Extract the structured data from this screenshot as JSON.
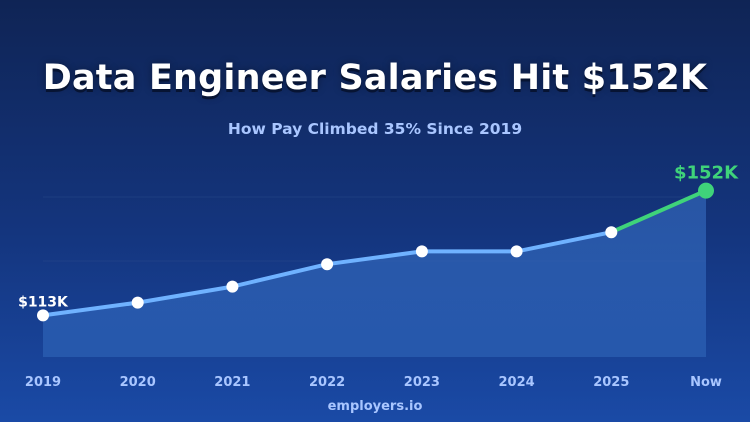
{
  "title": "Data Engineer Salaries Hit $152K",
  "subtitle": "How Pay Climbed 35% Since 2019",
  "footer": "employers.io",
  "colors": {
    "line": "#6fb2ff",
    "highlight": "#3fd37a",
    "point": "#ffffff",
    "area": "#2a5fb2",
    "grid": "#2a4a8c"
  },
  "chart_data": {
    "type": "line",
    "title": "Data Engineer Salaries Hit $152K",
    "subtitle": "How Pay Climbed 35% Since 2019",
    "xlabel": "",
    "ylabel": "",
    "categories": [
      "2019",
      "2020",
      "2021",
      "2022",
      "2023",
      "2024",
      "2025",
      "Now"
    ],
    "series": [
      {
        "values": [
          113,
          117,
          122,
          129,
          133,
          133,
          139,
          152
        ]
      }
    ],
    "unit": "$K",
    "ylim": [
      100,
      160
    ],
    "grid": true,
    "annotations": [
      {
        "category": "2019",
        "text": "$113K"
      },
      {
        "category": "Now",
        "text": "$152K"
      }
    ]
  }
}
